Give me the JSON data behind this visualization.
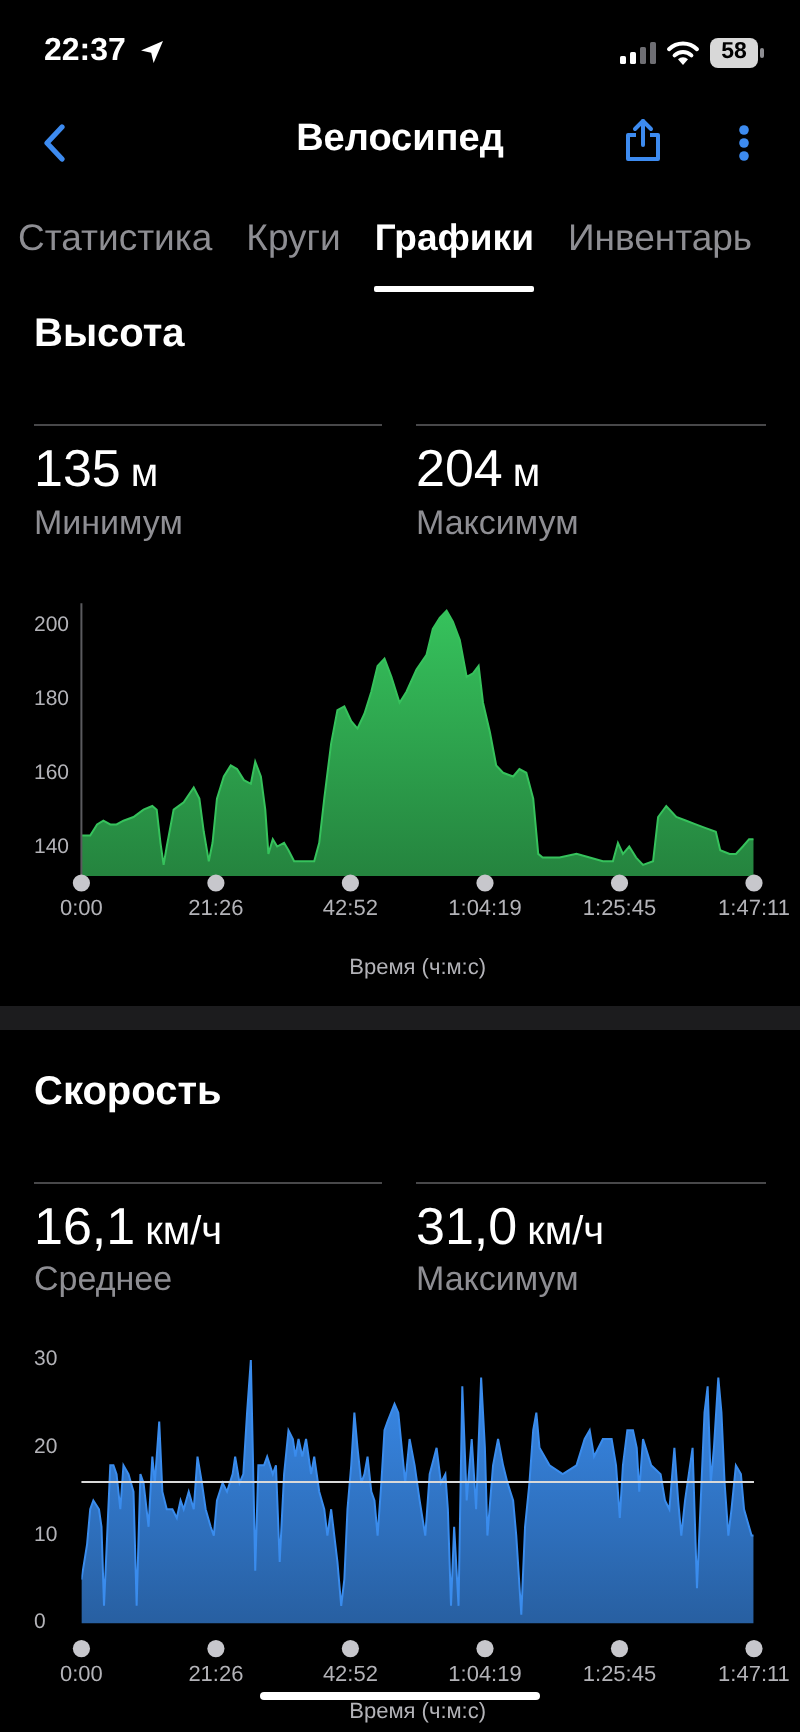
{
  "chart_data": [
    {
      "type": "area",
      "title": "Высота",
      "xlabel": "Время (ч:м:с)",
      "annotations": [
        "22:37",
        "58",
        "Велосипед",
        "Статистика",
        "Круги",
        "Графики",
        "Инвентарь",
        "135 м",
        "Минимум",
        "204 м",
        "Максимум"
      ],
      "color": "#36c25c",
      "x": [
        0,
        1.4,
        2.5,
        3.5,
        4.6,
        5.6,
        6.7,
        8.3,
        9.9,
        11.3,
        12.0,
        12.6,
        13.1,
        13.6,
        14.7,
        16.3,
        17.9,
        18.8,
        19.5,
        20.3,
        20.9,
        21.6,
        22.7,
        23.8,
        24.8,
        25.9,
        27.0,
        27.7,
        28.6,
        29.3,
        29.8,
        30.5,
        31.2,
        32.3,
        33.0,
        33.9,
        35.5,
        37.1,
        37.9,
        38.7,
        39.8,
        40.8,
        41.9,
        43.0,
        44.0,
        45.1,
        46.2,
        47.2,
        48.3,
        49.4,
        50.7,
        51.8,
        53.4,
        55.0,
        56.0,
        57.1,
        58.2,
        59.2,
        60.3,
        61.4,
        62.4,
        63.3,
        64.0,
        65.1,
        66.1,
        67.2,
        68.8,
        69.8,
        70.9,
        72.0,
        72.8,
        73.5,
        76.2,
        78.9,
        81.0,
        83.1,
        84.7,
        85.5,
        86.3,
        87.3,
        88.4,
        89.5,
        91.1,
        91.9,
        93.2,
        94.8,
        96.4,
        97.9,
        99.5,
        101.1,
        101.8,
        103.3,
        104.3,
        105.4,
        106.4,
        107.1
      ],
      "values": [
        143,
        143,
        146,
        147,
        146,
        146,
        147,
        148,
        150,
        151,
        150,
        141,
        135,
        140,
        150,
        152,
        156,
        153,
        144,
        136,
        141,
        153,
        159,
        162,
        161,
        158,
        157,
        163,
        159,
        150,
        138,
        142,
        140,
        141,
        139,
        136,
        136,
        136,
        141,
        153,
        168,
        177,
        178,
        174,
        172,
        176,
        182,
        189,
        191,
        186,
        179,
        182,
        188,
        192,
        199,
        202,
        204,
        201,
        196,
        186,
        187,
        189,
        179,
        171,
        162,
        160,
        159,
        161,
        160,
        153,
        138,
        137,
        137,
        138,
        137,
        136,
        136,
        141,
        138,
        140,
        137,
        135,
        136,
        148,
        151,
        148,
        147,
        146,
        145,
        144,
        139,
        138,
        138,
        140,
        142,
        142
      ],
      "xlim": [
        0,
        107.183
      ],
      "xticks": [
        {
          "value": 0,
          "label": "0:00"
        },
        {
          "value": 21.433,
          "label": "21:26"
        },
        {
          "value": 42.867,
          "label": "42:52"
        },
        {
          "value": 64.317,
          "label": "1:04:19"
        },
        {
          "value": 85.75,
          "label": "1:25:45"
        },
        {
          "value": 107.183,
          "label": "1:47:11"
        }
      ],
      "ylim": [
        132,
        206
      ],
      "yticks": [
        140,
        160,
        180,
        200
      ]
    },
    {
      "type": "area",
      "title": "Скорость",
      "xlabel": "Время (ч:м:с)",
      "annotations": [
        "16,1 км/ч",
        "Среднее",
        "31,0 км/ч",
        "Максимум"
      ],
      "color": "#3a8ced",
      "x": [
        0,
        0.9,
        1.4,
        1.9,
        2.8,
        3.2,
        3.6,
        4.1,
        4.6,
        5.1,
        5.6,
        6.2,
        6.7,
        7.5,
        8.3,
        8.8,
        9.4,
        9.9,
        10.7,
        11.3,
        11.7,
        12.4,
        12.9,
        13.6,
        14.5,
        15.2,
        15.8,
        16.3,
        17.1,
        17.9,
        18.5,
        19.2,
        19.8,
        20.6,
        21.1,
        21.6,
        22.5,
        23.2,
        24.1,
        24.5,
        25.2,
        25.8,
        26.4,
        27,
        27.3,
        27.7,
        28.2,
        29.1,
        29.6,
        30.5,
        31,
        31.6,
        32.3,
        33,
        33.7,
        34.1,
        34.6,
        35.2,
        35.8,
        36.6,
        37.1,
        37.9,
        38.7,
        39.2,
        39.8,
        40.3,
        40.8,
        41.4,
        41.9,
        42.4,
        43,
        43.5,
        44,
        44.6,
        45.1,
        45.6,
        46.2,
        46.7,
        47.2,
        47.8,
        48.3,
        48.8,
        49.9,
        50.5,
        51.6,
        52.3,
        53.1,
        53.9,
        54.8,
        55.5,
        56.6,
        57.3,
        58,
        58.4,
        58.9,
        59.4,
        60.1,
        60.7,
        61.4,
        62.2,
        62.9,
        63.7,
        64.3,
        64.7,
        65.6,
        66.4,
        67.2,
        67.9,
        68.8,
        69.3,
        70.1,
        70.7,
        71.4,
        72,
        72.5,
        73,
        74.6,
        76.7,
        78.9,
        80.2,
        81,
        81.7,
        83.1,
        84.5,
        85.2,
        85.8,
        86.3,
        87,
        87.9,
        88.5,
        88.9,
        89.5,
        90.8,
        92.3,
        93,
        93.7,
        94.5,
        95.1,
        95.6,
        96.2,
        97.4,
        98.1,
        98.7,
        99.3,
        99.8,
        100.3,
        100.8,
        101.5,
        102,
        102.5,
        103.1,
        103.6,
        104.3,
        105.1,
        105.6,
        106.8,
        107.1
      ],
      "values": [
        5,
        9,
        13,
        14,
        13,
        11,
        2,
        10,
        18,
        18,
        17,
        13,
        18,
        17,
        15,
        2,
        17,
        16,
        11,
        19,
        16,
        23,
        15,
        13,
        13,
        12,
        14,
        13,
        15,
        13,
        19,
        16,
        13,
        11,
        10,
        14,
        16,
        15,
        17,
        19,
        16,
        17,
        24,
        30,
        20,
        6,
        18,
        18,
        19,
        17,
        18,
        7,
        17,
        22,
        21,
        19,
        21,
        19,
        21,
        17,
        19,
        15,
        13,
        10,
        13,
        10,
        7,
        2,
        5,
        13,
        18,
        24,
        20,
        16,
        17,
        19,
        15,
        14,
        10,
        16,
        22,
        23,
        25,
        24,
        16,
        21,
        18,
        14,
        10,
        17,
        20,
        16,
        17,
        13,
        2,
        11,
        2,
        27,
        14,
        21,
        13,
        28,
        20,
        10,
        18,
        21,
        18,
        16,
        14,
        10,
        1,
        11,
        16,
        22,
        24,
        20,
        18,
        17,
        18,
        21,
        22,
        19,
        21,
        21,
        18,
        12,
        18,
        22,
        22,
        20,
        15,
        21,
        18,
        17,
        14,
        13,
        20,
        14,
        10,
        14,
        20,
        4,
        14,
        24,
        27,
        16,
        20,
        28,
        24,
        16,
        10,
        13,
        18,
        17,
        13,
        10,
        10
      ],
      "xlim": [
        0,
        107.183
      ],
      "xticks": [
        {
          "value": 0,
          "label": "0:00"
        },
        {
          "value": 21.433,
          "label": "21:26"
        },
        {
          "value": 42.867,
          "label": "42:52"
        },
        {
          "value": 64.317,
          "label": "1:04:19"
        },
        {
          "value": 85.75,
          "label": "1:25:45"
        },
        {
          "value": 107.183,
          "label": "1:47:11"
        }
      ],
      "ylim": [
        0,
        30
      ],
      "yticks": [
        0,
        10,
        20,
        30
      ],
      "ref_lines": [
        {
          "axis": "y",
          "value": 16.1,
          "color": "#d9d9d9"
        }
      ]
    }
  ]
}
